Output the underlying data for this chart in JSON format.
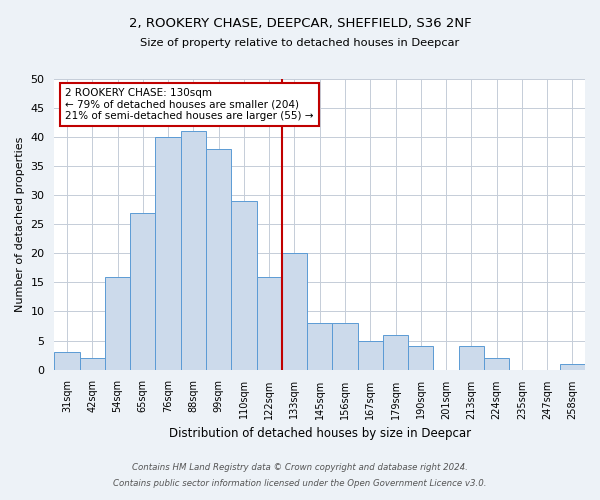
{
  "title": "2, ROOKERY CHASE, DEEPCAR, SHEFFIELD, S36 2NF",
  "subtitle": "Size of property relative to detached houses in Deepcar",
  "xlabel": "Distribution of detached houses by size in Deepcar",
  "ylabel": "Number of detached properties",
  "bar_labels": [
    "31sqm",
    "42sqm",
    "54sqm",
    "65sqm",
    "76sqm",
    "88sqm",
    "99sqm",
    "110sqm",
    "122sqm",
    "133sqm",
    "145sqm",
    "156sqm",
    "167sqm",
    "179sqm",
    "190sqm",
    "201sqm",
    "213sqm",
    "224sqm",
    "235sqm",
    "247sqm",
    "258sqm"
  ],
  "bar_values": [
    3,
    2,
    16,
    27,
    40,
    41,
    38,
    29,
    16,
    20,
    8,
    8,
    5,
    6,
    4,
    0,
    4,
    2,
    0,
    0,
    1
  ],
  "bar_color": "#ccdaeb",
  "bar_edge_color": "#5b9bd5",
  "vline_x_index": 8.5,
  "vline_color": "#c00000",
  "annotation_text": "2 ROOKERY CHASE: 130sqm\n← 79% of detached houses are smaller (204)\n21% of semi-detached houses are larger (55) →",
  "annotation_box_color": "#c00000",
  "ylim": [
    0,
    50
  ],
  "yticks": [
    0,
    5,
    10,
    15,
    20,
    25,
    30,
    35,
    40,
    45,
    50
  ],
  "footer_line1": "Contains HM Land Registry data © Crown copyright and database right 2024.",
  "footer_line2": "Contains public sector information licensed under the Open Government Licence v3.0.",
  "bg_color": "#edf2f7",
  "plot_bg_color": "#ffffff",
  "grid_color": "#c5cdd8"
}
